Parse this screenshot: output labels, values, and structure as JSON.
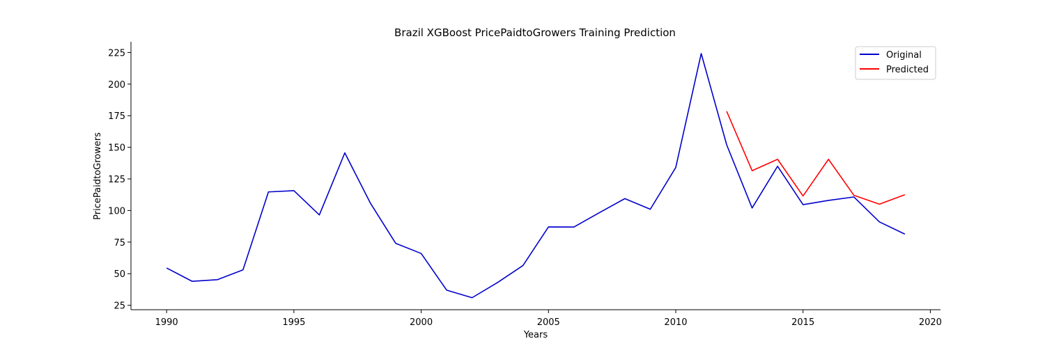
{
  "chart_data": {
    "type": "line",
    "title": "Brazil XGBoost PricePaidtoGrowers Training Prediction",
    "xlabel": "Years",
    "ylabel": "PricePaidtoGrowers",
    "xlim": [
      1988.6,
      2020.4
    ],
    "ylim": [
      21.5,
      233.5
    ],
    "xticks": [
      1990,
      1995,
      2000,
      2005,
      2010,
      2015,
      2020
    ],
    "yticks": [
      25,
      50,
      75,
      100,
      125,
      150,
      175,
      200,
      225
    ],
    "grid": false,
    "legend_position": "top-right",
    "series": [
      {
        "name": "Original",
        "color": "#0000cc",
        "x": [
          1990,
          1991,
          1992,
          1993,
          1994,
          1995,
          1996,
          1997,
          1998,
          1999,
          2000,
          2001,
          2002,
          2003,
          2004,
          2005,
          2006,
          2007,
          2008,
          2009,
          2010,
          2011,
          2012,
          2013,
          2014,
          2015,
          2016,
          2017,
          2018,
          2019
        ],
        "y": [
          54.5,
          44,
          45.3,
          53,
          114.7,
          115.7,
          96.5,
          145.6,
          106,
          74,
          66,
          37,
          31,
          43,
          56.5,
          87,
          86.9,
          98.3,
          109.4,
          101,
          134,
          224.2,
          152,
          102,
          135,
          104.6,
          108,
          110.7,
          91,
          81.3
        ]
      },
      {
        "name": "Predicted",
        "color": "#ff0000",
        "x": [
          2012,
          2013,
          2014,
          2015,
          2016,
          2017,
          2018,
          2019
        ],
        "y": [
          178.5,
          131.5,
          140.5,
          111.5,
          140.5,
          112,
          105,
          112.5
        ]
      }
    ]
  }
}
